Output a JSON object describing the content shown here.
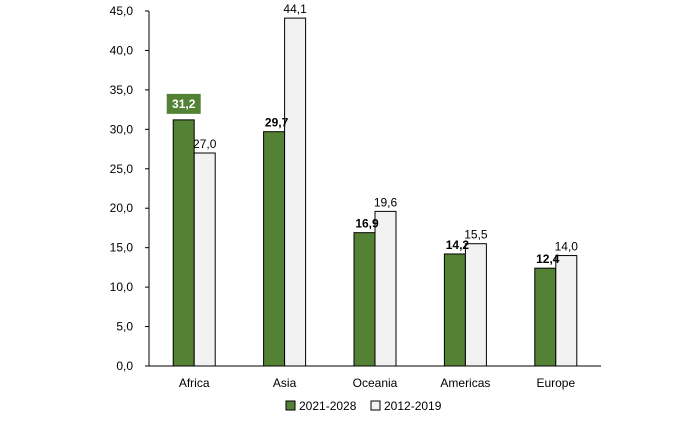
{
  "chart_data": {
    "type": "bar",
    "categories": [
      "Africa",
      "Asia",
      "Oceania",
      "Americas",
      "Europe"
    ],
    "series": [
      {
        "name": "2021-2028",
        "values": [
          31.2,
          29.7,
          16.9,
          14.2,
          12.4
        ],
        "labels": [
          "31,2",
          "29,7",
          "16,9",
          "14,2",
          "12,4"
        ],
        "color": "#548235",
        "label_weight": "bold"
      },
      {
        "name": "2012-2019",
        "values": [
          27.0,
          44.1,
          19.6,
          15.5,
          14.0
        ],
        "labels": [
          "27,0",
          "44,1",
          "19,6",
          "15,5",
          "14,0"
        ],
        "color": "#f2f2f2",
        "label_weight": "normal"
      }
    ],
    "highlight": {
      "series": 0,
      "category": 0,
      "badge_color": "#548235",
      "text_color": "#ffffff"
    },
    "ylim": [
      0,
      45
    ],
    "yticks": [
      0,
      5,
      10,
      15,
      20,
      25,
      30,
      35,
      40,
      45
    ],
    "ytick_labels": [
      "0,0",
      "5,0",
      "10,0",
      "15,0",
      "20,0",
      "25,0",
      "30,0",
      "35,0",
      "40,0",
      "45,0"
    ],
    "grid": false,
    "legend_position": "bottom-center",
    "title": "",
    "xlabel": "",
    "ylabel": ""
  }
}
